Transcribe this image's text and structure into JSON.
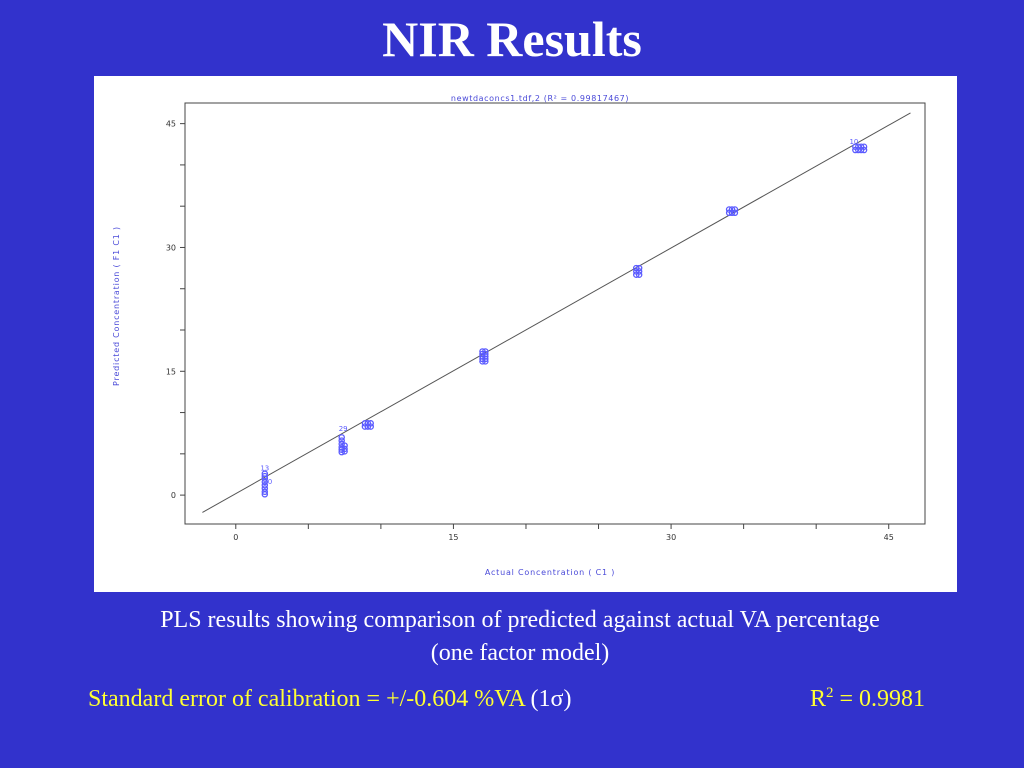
{
  "slide": {
    "title": "NIR Results",
    "caption_line1": "PLS results showing comparison of predicted against actual VA percentage",
    "caption_line2": "(one factor model)",
    "sec_text": "Standard error of calibration = +/-0.604 %VA",
    "sec_sigma": "(1σ)",
    "r2_prefix": "R",
    "r2_sup": "2",
    "r2_value": " = 0.9981",
    "text_color": "#ffffff",
    "highlight_color": "#ffff33",
    "background_color": "#3232cc"
  },
  "chart_data": {
    "type": "scatter",
    "title": "newtdaconcs1.tdf,2  (R² = 0.99817467)",
    "xlabel": "Actual Concentration ( C1 )",
    "ylabel": "Predicted Concentration ( F1 C1 )",
    "xlim": [
      -3.5,
      47.5
    ],
    "ylim": [
      -3.5,
      47.5
    ],
    "xticks": [
      0,
      15,
      30,
      45
    ],
    "yticks": [
      0,
      15,
      30,
      45
    ],
    "minor_step": 5,
    "grid": false,
    "line_color": "#555555",
    "marker_color": "#5b5bff",
    "regression_line": {
      "x": [
        -2.3,
        46.5
      ],
      "y": [
        -2.1,
        46.3
      ]
    },
    "series": [
      {
        "x": [
          2.0,
          2.0,
          2.0,
          2.0,
          2.0,
          2.0,
          2.0,
          2.0
        ],
        "y": [
          2.6,
          2.3,
          2.0,
          1.6,
          1.2,
          0.8,
          0.4,
          0.1
        ]
      },
      {
        "x": [
          7.3,
          7.3,
          7.3,
          7.3,
          7.3,
          7.3,
          7.5,
          7.5,
          7.5
        ],
        "y": [
          7.0,
          6.6,
          6.2,
          5.8,
          5.5,
          5.2,
          6.0,
          5.6,
          5.3
        ]
      },
      {
        "x": [
          8.9,
          9.1,
          9.3,
          8.9,
          9.1,
          9.3
        ],
        "y": [
          8.7,
          8.7,
          8.7,
          8.3,
          8.3,
          8.3
        ]
      },
      {
        "x": [
          17.0,
          17.0,
          17.0,
          17.0,
          17.0,
          17.2,
          17.2,
          17.2,
          17.2,
          17.2
        ],
        "y": [
          17.4,
          17.1,
          16.8,
          16.5,
          16.2,
          17.4,
          17.1,
          16.8,
          16.5,
          16.2
        ]
      },
      {
        "x": [
          27.6,
          27.6,
          27.6,
          27.8,
          27.8,
          27.8
        ],
        "y": [
          27.5,
          27.1,
          26.7,
          27.5,
          27.1,
          26.7
        ]
      },
      {
        "x": [
          34.0,
          34.2,
          34.4,
          34.0,
          34.2,
          34.4
        ],
        "y": [
          34.6,
          34.6,
          34.6,
          34.2,
          34.2,
          34.2
        ]
      },
      {
        "x": [
          42.7,
          42.9,
          43.1,
          43.3,
          42.7,
          42.9,
          43.1,
          43.3
        ],
        "y": [
          42.2,
          42.2,
          42.2,
          42.2,
          41.8,
          41.8,
          41.8,
          41.8
        ]
      }
    ],
    "point_labels": [
      {
        "text": "13",
        "x": 2.0,
        "y": 2.6
      },
      {
        "text": "30",
        "x": 2.2,
        "y": 1.0
      },
      {
        "text": "29",
        "x": 7.4,
        "y": 7.4
      },
      {
        "text": "10",
        "x": 42.6,
        "y": 42.2
      }
    ]
  }
}
